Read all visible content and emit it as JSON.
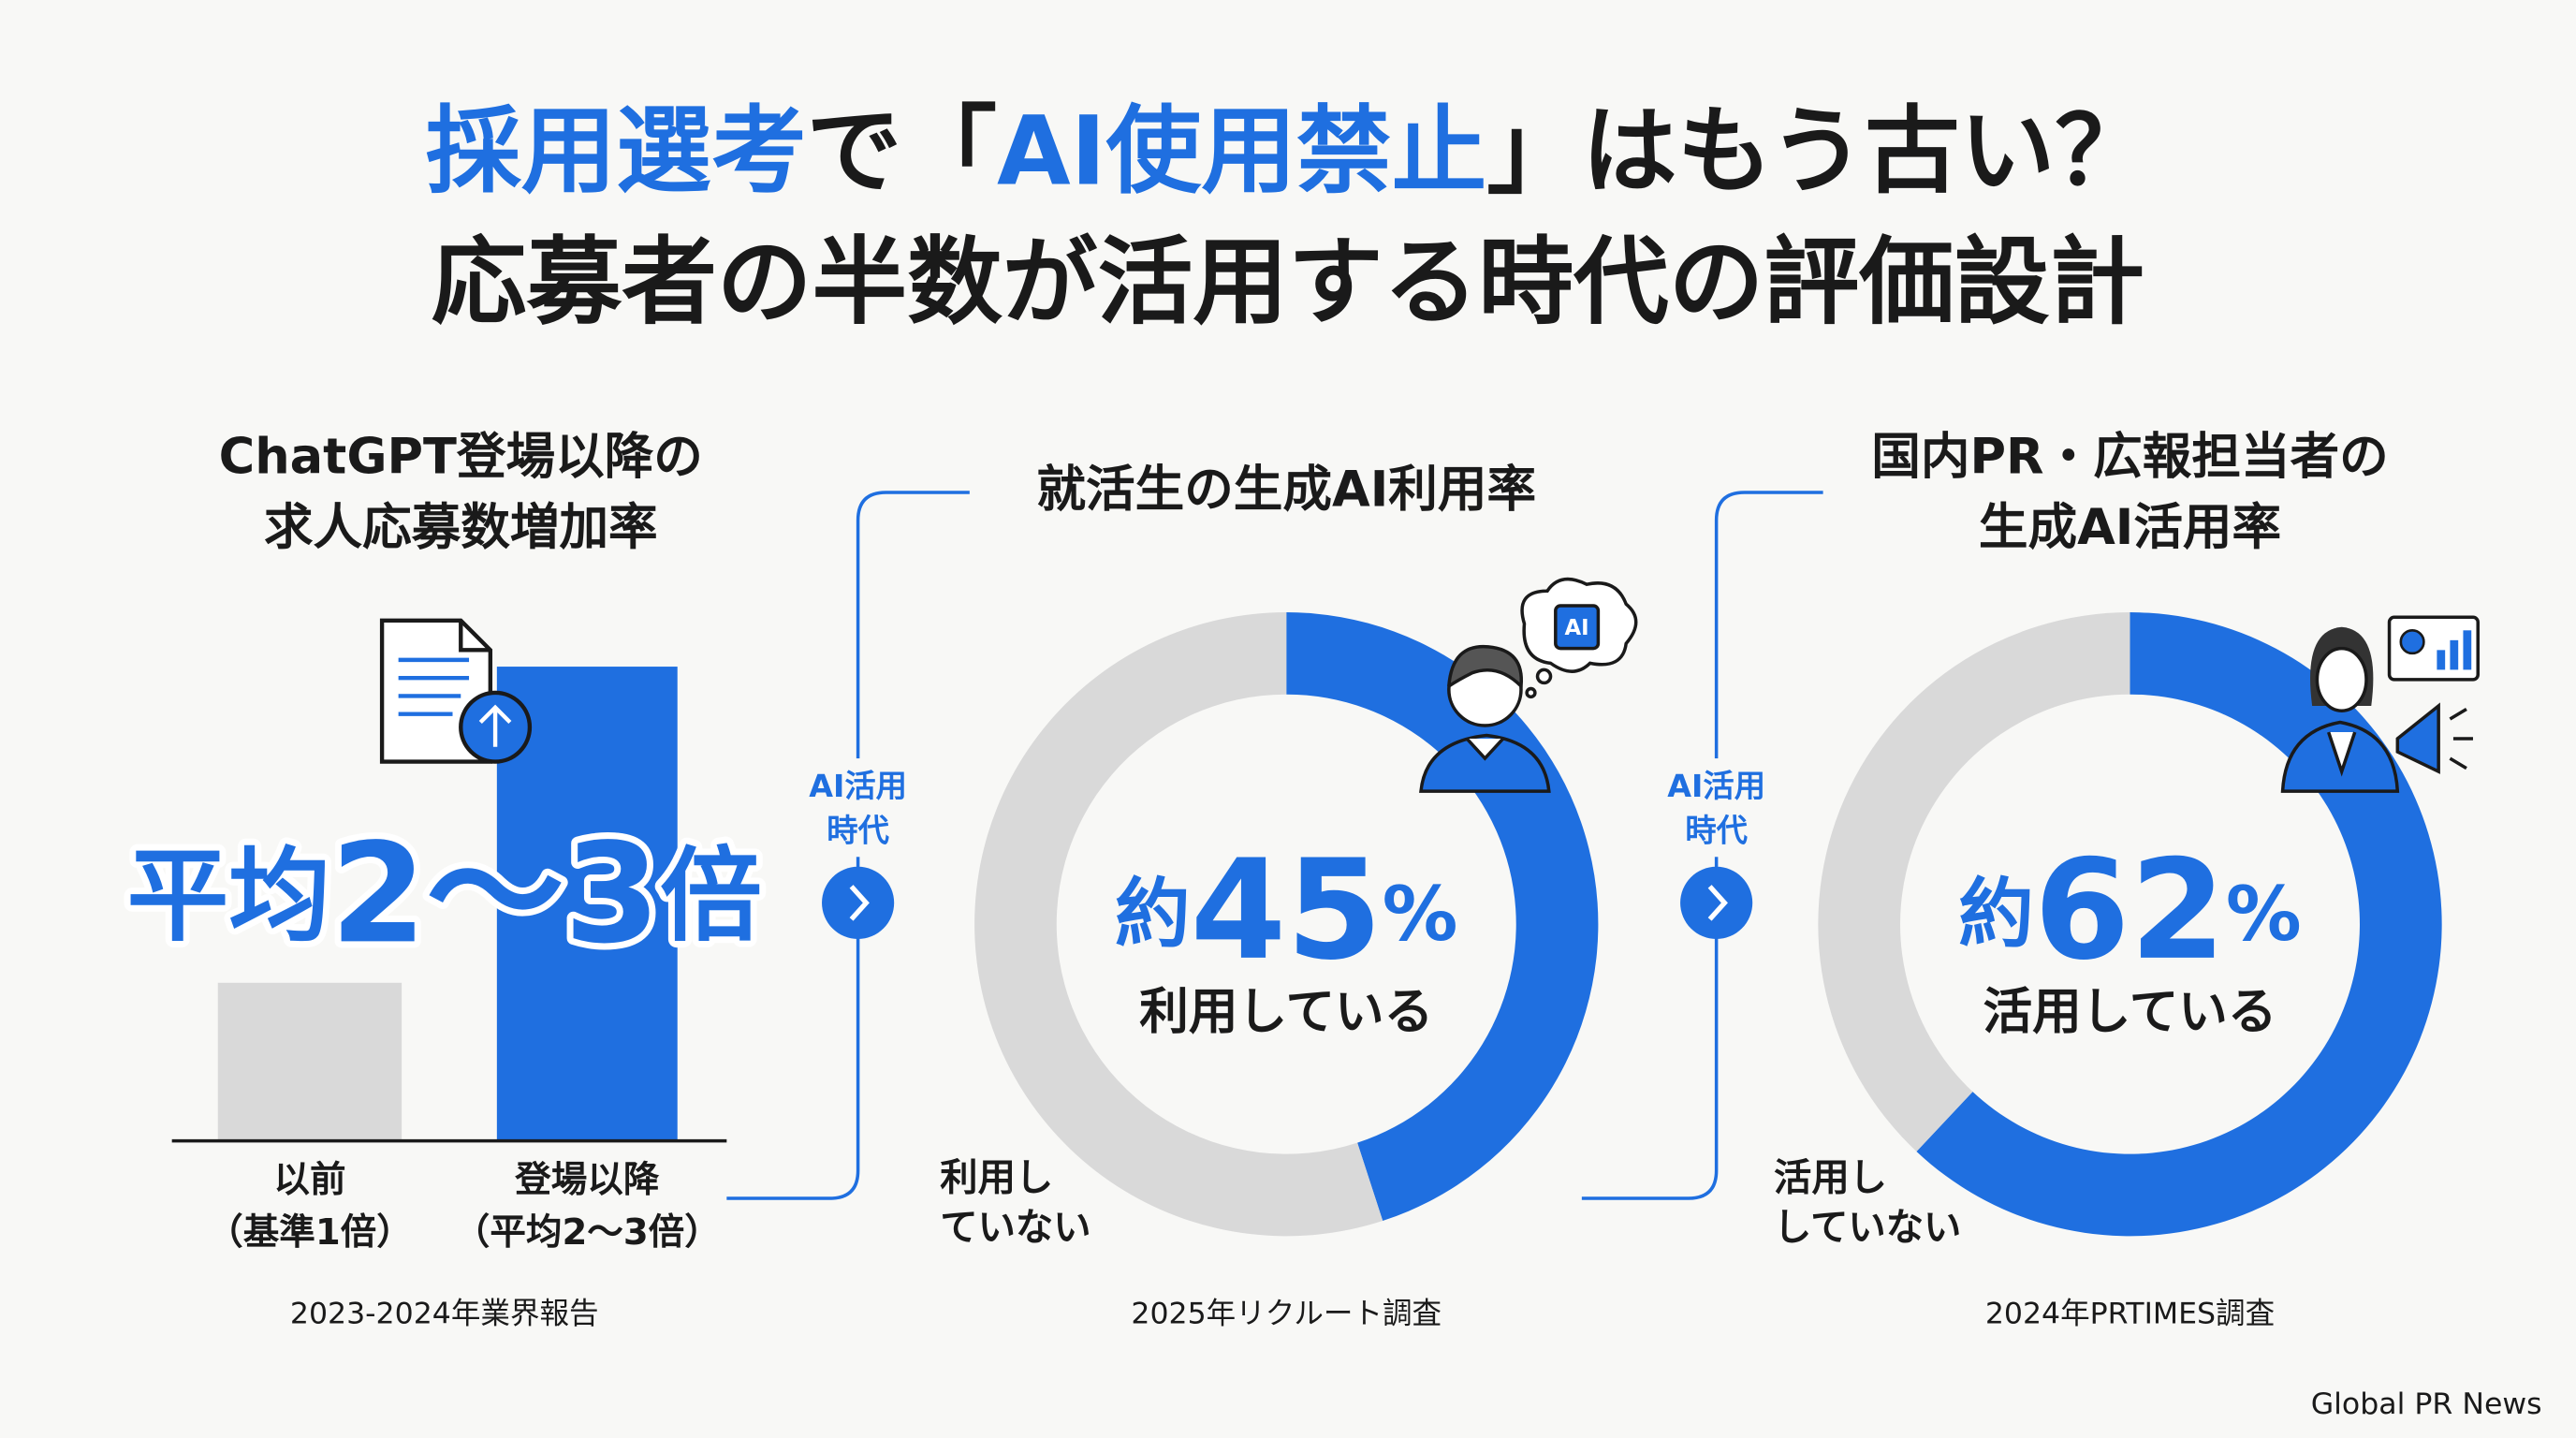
{
  "title": {
    "line1": [
      "採用選考",
      "で「",
      "AI使用禁止",
      "」はもう古い？"
    ],
    "line2": "応募者の半数が活用する時代の評価設計"
  },
  "chart_data": [
    {
      "type": "bar",
      "title": [
        "ChatGPT登場以降の",
        "求人応募数増加率"
      ],
      "categories": [
        [
          "以前",
          "（基準1倍）"
        ],
        [
          "登場以降",
          "（平均2〜3倍）"
        ]
      ],
      "values": [
        1,
        3
      ],
      "colors": [
        "#d9d9d9",
        "#1f6fe0"
      ],
      "headline": "平均2〜3倍",
      "source": "2023-2024年業界報告"
    },
    {
      "type": "donut",
      "title": [
        "就活生の生成AI利用率"
      ],
      "categories": [
        "利用している",
        [
          "利用し",
          "ていない"
        ]
      ],
      "values": [
        45,
        55
      ],
      "colors": [
        "#1f6fe0",
        "#d9d9d9"
      ],
      "value_label": "約45%",
      "icon_label": "AI",
      "source": "2025年リクルート調査"
    },
    {
      "type": "donut",
      "title": [
        "国内PR・広報担当者の",
        "生成AI活用率"
      ],
      "categories": [
        "活用している",
        [
          "活用し",
          "していない"
        ]
      ],
      "values": [
        62,
        38
      ],
      "colors": [
        "#1f6fe0",
        "#d9d9d9"
      ],
      "value_label": "約62%",
      "source": "2024年PRTIMES調査"
    }
  ],
  "connectors": [
    [
      "AI活用",
      "時代"
    ],
    [
      "AI活用",
      "時代"
    ]
  ],
  "footer": "Global PR News"
}
